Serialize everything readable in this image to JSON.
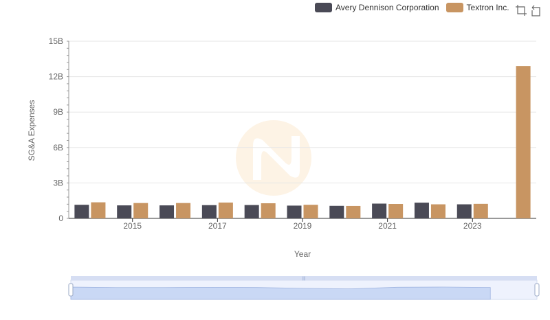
{
  "chart_data": {
    "type": "bar",
    "title": "",
    "xlabel": "Year",
    "ylabel": "SG&A Expenses",
    "categories": [
      "2014",
      "2015",
      "2016",
      "2017",
      "2018",
      "2019",
      "2020",
      "2021",
      "2022",
      "2023",
      "2024"
    ],
    "x_tick_labels": [
      "2015",
      "2017",
      "2019",
      "2021",
      "2023"
    ],
    "y_tick_labels": [
      "0",
      "3B",
      "6B",
      "9B",
      "12B",
      "15B"
    ],
    "ylim": [
      0,
      15000000000
    ],
    "grid": true,
    "legend_position": "top-right",
    "series": [
      {
        "name": "Avery Dennison Corporation",
        "color": "#4a4a56",
        "values": [
          1150000000,
          1100000000,
          1100000000,
          1120000000,
          1130000000,
          1080000000,
          1060000000,
          1250000000,
          1330000000,
          1190000000,
          null
        ]
      },
      {
        "name": "Textron Inc.",
        "color": "#c89562",
        "values": [
          1360000000,
          1300000000,
          1300000000,
          1340000000,
          1280000000,
          1150000000,
          1050000000,
          1220000000,
          1190000000,
          1230000000,
          12900000000
        ]
      }
    ],
    "datazoom": {
      "start": 0,
      "end": 100
    }
  },
  "toolbox": {
    "zoom_icon": "data-zoom-icon",
    "restore_icon": "restore-icon"
  },
  "watermark_icon": "logo-watermark"
}
